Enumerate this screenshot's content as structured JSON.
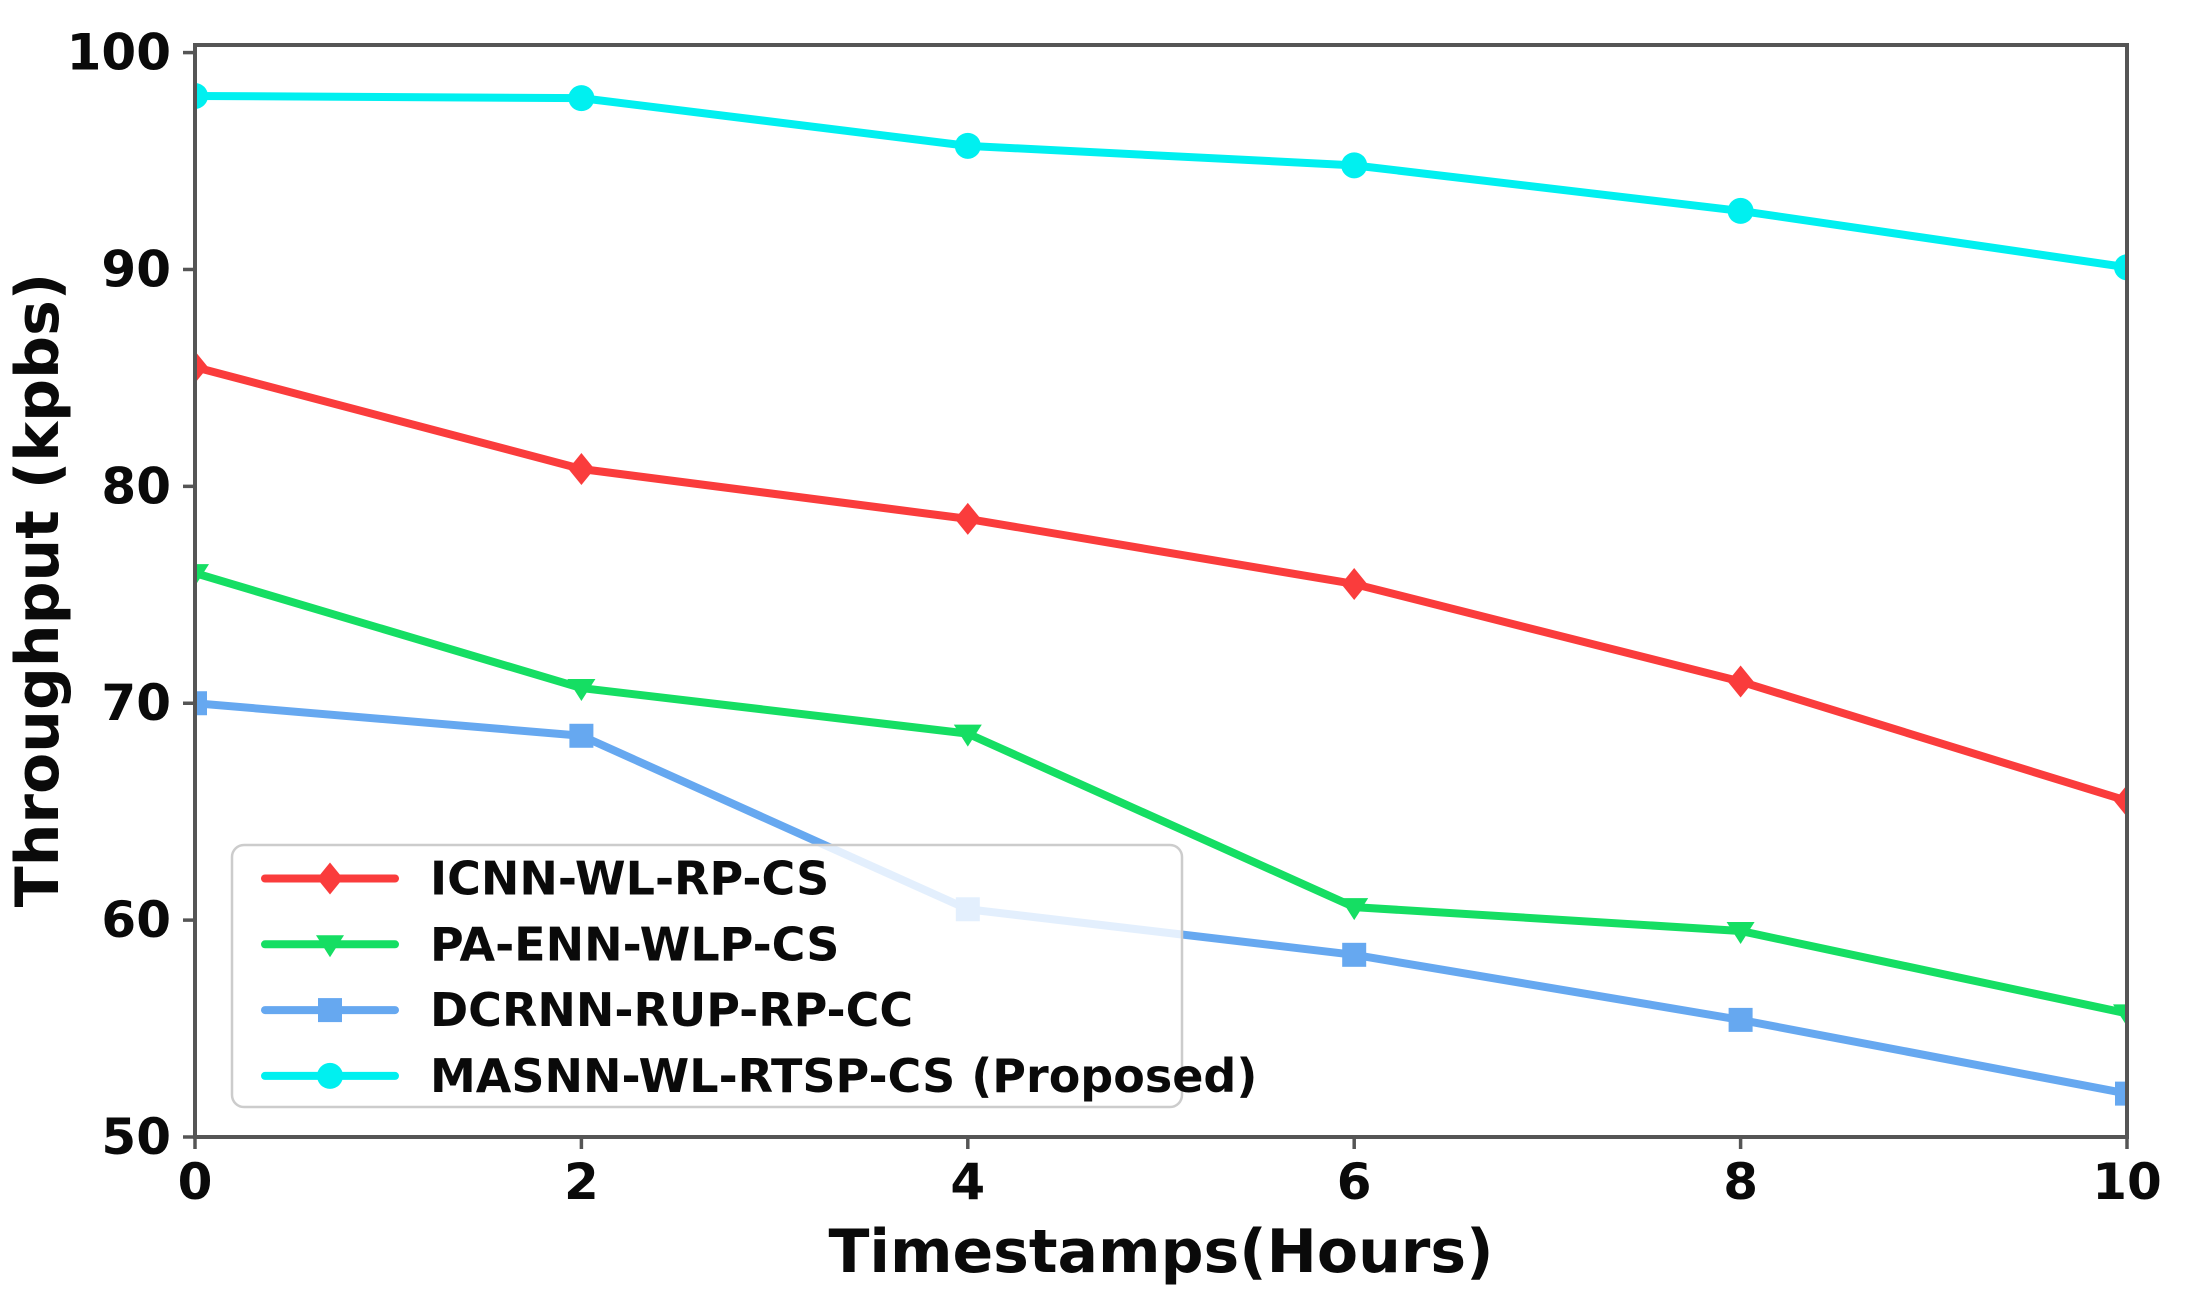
{
  "chart_data": {
    "type": "line",
    "title": "",
    "xlabel": "Timestamps(Hours)",
    "ylabel": "Throughput (kpbs)",
    "x": [
      0,
      2,
      4,
      6,
      8,
      10
    ],
    "xticks": [
      "0",
      "2",
      "4",
      "6",
      "8",
      "10"
    ],
    "yticks": [
      "50",
      "60",
      "70",
      "80",
      "90",
      "100"
    ],
    "xlim": [
      0,
      10
    ],
    "ylim": [
      50,
      100
    ],
    "grid": false,
    "legend_position": "lower-left",
    "series": [
      {
        "name": "ICNN-WL-RP-CS",
        "color": "#fa3c3c",
        "marker": "diamond",
        "values": [
          85.5,
          80.8,
          78.5,
          75.5,
          71.0,
          65.5
        ]
      },
      {
        "name": "PA-ENN-WLP-CS",
        "color": "#15de63",
        "marker": "triangle-down",
        "values": [
          76.0,
          70.7,
          68.6,
          60.6,
          59.5,
          55.7
        ]
      },
      {
        "name": "DCRNN-RUP-RP-CC",
        "color": "#66a8f0",
        "marker": "square",
        "values": [
          70.0,
          68.5,
          60.5,
          58.4,
          55.4,
          52.0
        ]
      },
      {
        "name": "MASNN-WL-RTSP-CS (Proposed)",
        "color": "#00f0f0",
        "marker": "circle",
        "values": [
          98.0,
          97.9,
          95.7,
          94.8,
          92.7,
          90.1
        ]
      }
    ],
    "axis_color": "#555555",
    "legend_border_color": "#cccccc"
  }
}
